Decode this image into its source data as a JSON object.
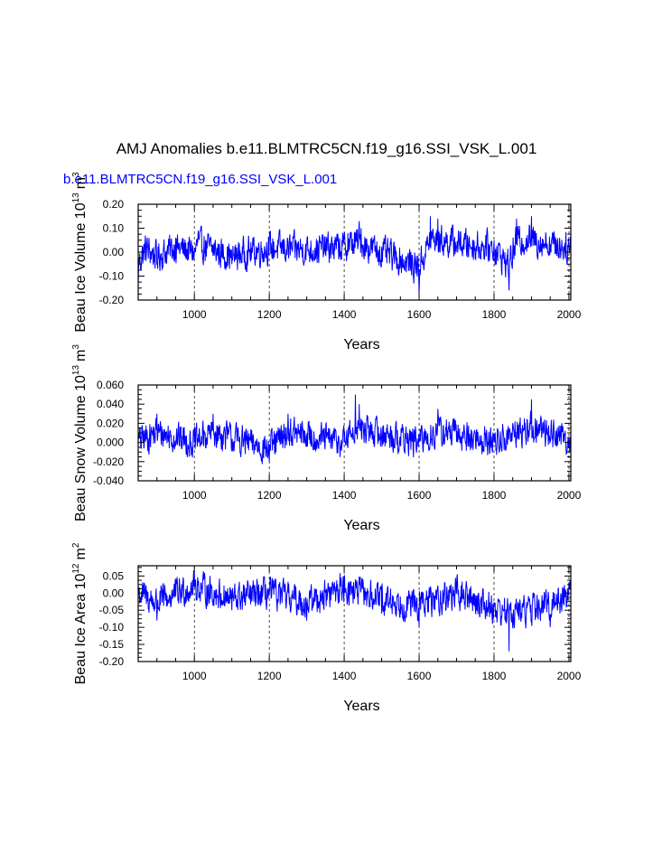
{
  "title": "AMJ Anomalies b.e11.BLMTRC5CN.f19_g16.SSI_VSK_L.001",
  "subtitle": "b.e11.BLMTRC5CN.f19_g16.SSI_VSK_L.001",
  "colors": {
    "series": "#0000ff",
    "axes": "#000000",
    "subtitle": "#0000ff"
  },
  "chart_data": [
    {
      "type": "line",
      "xlabel": "Years",
      "ylabel": "Beau Ice Volume 10",
      "ylabel_exp": "13",
      "ylabel_unit": "m",
      "ylabel_unit_exp": "3",
      "xlim": [
        850,
        2005
      ],
      "ylim": [
        -0.2,
        0.2
      ],
      "xticks": [
        1000,
        1200,
        1400,
        1600,
        1800,
        2000
      ],
      "yticks": [
        -0.2,
        -0.1,
        0.0,
        0.1,
        0.2
      ],
      "ytick_labels": [
        "-0.20",
        "-0.10",
        "0.00",
        "0.10",
        "0.20"
      ],
      "vlines": [
        1000,
        1200,
        1400,
        1600,
        1800,
        2000
      ],
      "series": [
        {
          "x_start": 850,
          "x_end": 2005,
          "key_values": [
            [
              850,
              -0.14
            ],
            [
              870,
              0.04
            ],
            [
              900,
              -0.05
            ],
            [
              950,
              0.06
            ],
            [
              1000,
              0.0
            ],
            [
              1010,
              0.09
            ],
            [
              1100,
              -0.05
            ],
            [
              1200,
              0.05
            ],
            [
              1300,
              0.03
            ],
            [
              1400,
              0.06
            ],
            [
              1410,
              0.08
            ],
            [
              1440,
              0.13
            ],
            [
              1445,
              0.1
            ],
            [
              1600,
              -0.18
            ],
            [
              1630,
              0.15
            ],
            [
              1650,
              0.14
            ],
            [
              1800,
              0.05
            ],
            [
              1840,
              -0.16
            ],
            [
              1860,
              0.14
            ],
            [
              1900,
              0.15
            ],
            [
              2005,
              0.05
            ]
          ]
        }
      ]
    },
    {
      "type": "line",
      "xlabel": "Years",
      "ylabel": "Beau Snow Volume 10",
      "ylabel_exp": "13",
      "ylabel_unit": "m",
      "ylabel_unit_exp": "3",
      "xlim": [
        850,
        2005
      ],
      "ylim": [
        -0.04,
        0.06
      ],
      "xticks": [
        1000,
        1200,
        1400,
        1600,
        1800,
        2000
      ],
      "yticks": [
        -0.04,
        -0.02,
        0.0,
        0.02,
        0.04,
        0.06
      ],
      "ytick_labels": [
        "-0.040",
        "-0.020",
        "0.000",
        "0.020",
        "0.040",
        "0.060"
      ],
      "vlines": [
        1000,
        1200,
        1400,
        1600,
        1800,
        2000
      ],
      "series": [
        {
          "x_start": 850,
          "x_end": 2005,
          "key_values": [
            [
              850,
              0.002
            ],
            [
              900,
              0.03
            ],
            [
              1000,
              0.0
            ],
            [
              1050,
              0.03
            ],
            [
              1200,
              -0.02
            ],
            [
              1250,
              0.03
            ],
            [
              1400,
              0.0
            ],
            [
              1430,
              0.05
            ],
            [
              1440,
              0.04
            ],
            [
              1600,
              0.0
            ],
            [
              1650,
              0.035
            ],
            [
              1800,
              0.0
            ],
            [
              1900,
              0.045
            ],
            [
              2005,
              0.01
            ]
          ]
        }
      ]
    },
    {
      "type": "line",
      "xlabel": "Years",
      "ylabel": "Beau Ice Area 10",
      "ylabel_exp": "12",
      "ylabel_unit": "m",
      "ylabel_unit_exp": "2",
      "xlim": [
        850,
        2005
      ],
      "ylim": [
        -0.2,
        0.08
      ],
      "xticks": [
        1000,
        1200,
        1400,
        1600,
        1800,
        2000
      ],
      "yticks": [
        -0.2,
        -0.15,
        -0.1,
        -0.05,
        0.0,
        0.05
      ],
      "ytick_labels": [
        "-0.20",
        "-0.15",
        "-0.10",
        "-0.05",
        "0.00",
        "0.05"
      ],
      "vlines": [
        1000,
        1200,
        1400,
        1600,
        1800,
        2000
      ],
      "series": [
        {
          "x_start": 850,
          "x_end": 2005,
          "key_values": [
            [
              850,
              0.0
            ],
            [
              900,
              -0.08
            ],
            [
              1000,
              0.06
            ],
            [
              1100,
              -0.05
            ],
            [
              1200,
              0.0
            ],
            [
              1300,
              -0.08
            ],
            [
              1400,
              0.05
            ],
            [
              1500,
              -0.06
            ],
            [
              1600,
              -0.1
            ],
            [
              1700,
              0.0
            ],
            [
              1840,
              -0.17
            ],
            [
              1950,
              -0.1
            ],
            [
              2005,
              0.02
            ]
          ]
        }
      ]
    }
  ]
}
